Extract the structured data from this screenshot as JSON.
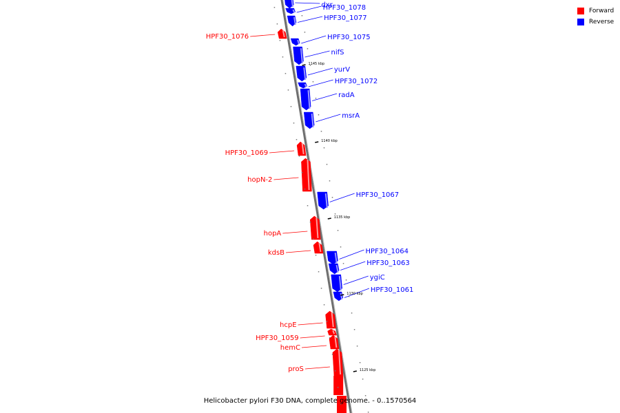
{
  "title": "Helicobacter pylori F30 DNA, complete genome. - 0..1570564",
  "legend": [
    {
      "label": "Forward",
      "color": "#ff0000"
    },
    {
      "label": "Reverse",
      "color": "#0000ff"
    }
  ],
  "colors": {
    "forward": "#ff0000",
    "reverse": "#0000ff",
    "axis": "#888888"
  },
  "ticks": [
    {
      "label": "1145 kbp"
    },
    {
      "label": "1140 kbp"
    },
    {
      "label": "1135 kbp"
    },
    {
      "label": "1130 kbp"
    },
    {
      "label": "1125 kbp"
    }
  ],
  "genes": [
    {
      "name": "dxr",
      "strand": "reverse"
    },
    {
      "name": "HPF30_1078",
      "strand": "reverse"
    },
    {
      "name": "HPF30_1077",
      "strand": "reverse"
    },
    {
      "name": "HPF30_1076",
      "strand": "forward"
    },
    {
      "name": "HPF30_1075",
      "strand": "reverse"
    },
    {
      "name": "nifS",
      "strand": "reverse"
    },
    {
      "name": "yurV",
      "strand": "reverse"
    },
    {
      "name": "HPF30_1072",
      "strand": "reverse"
    },
    {
      "name": "radA",
      "strand": "reverse"
    },
    {
      "name": "msrA",
      "strand": "reverse"
    },
    {
      "name": "HPF30_1069",
      "strand": "forward"
    },
    {
      "name": "hopN-2",
      "strand": "forward"
    },
    {
      "name": "HPF30_1067",
      "strand": "reverse"
    },
    {
      "name": "hopA",
      "strand": "forward"
    },
    {
      "name": "kdsB",
      "strand": "forward"
    },
    {
      "name": "HPF30_1064",
      "strand": "reverse"
    },
    {
      "name": "HPF30_1063",
      "strand": "reverse"
    },
    {
      "name": "ygiC",
      "strand": "reverse"
    },
    {
      "name": "HPF30_1061",
      "strand": "reverse"
    },
    {
      "name": "hcpE",
      "strand": "forward"
    },
    {
      "name": "HPF30_1059",
      "strand": "forward"
    },
    {
      "name": "hemC",
      "strand": "forward"
    },
    {
      "name": "proS",
      "strand": "forward"
    }
  ]
}
